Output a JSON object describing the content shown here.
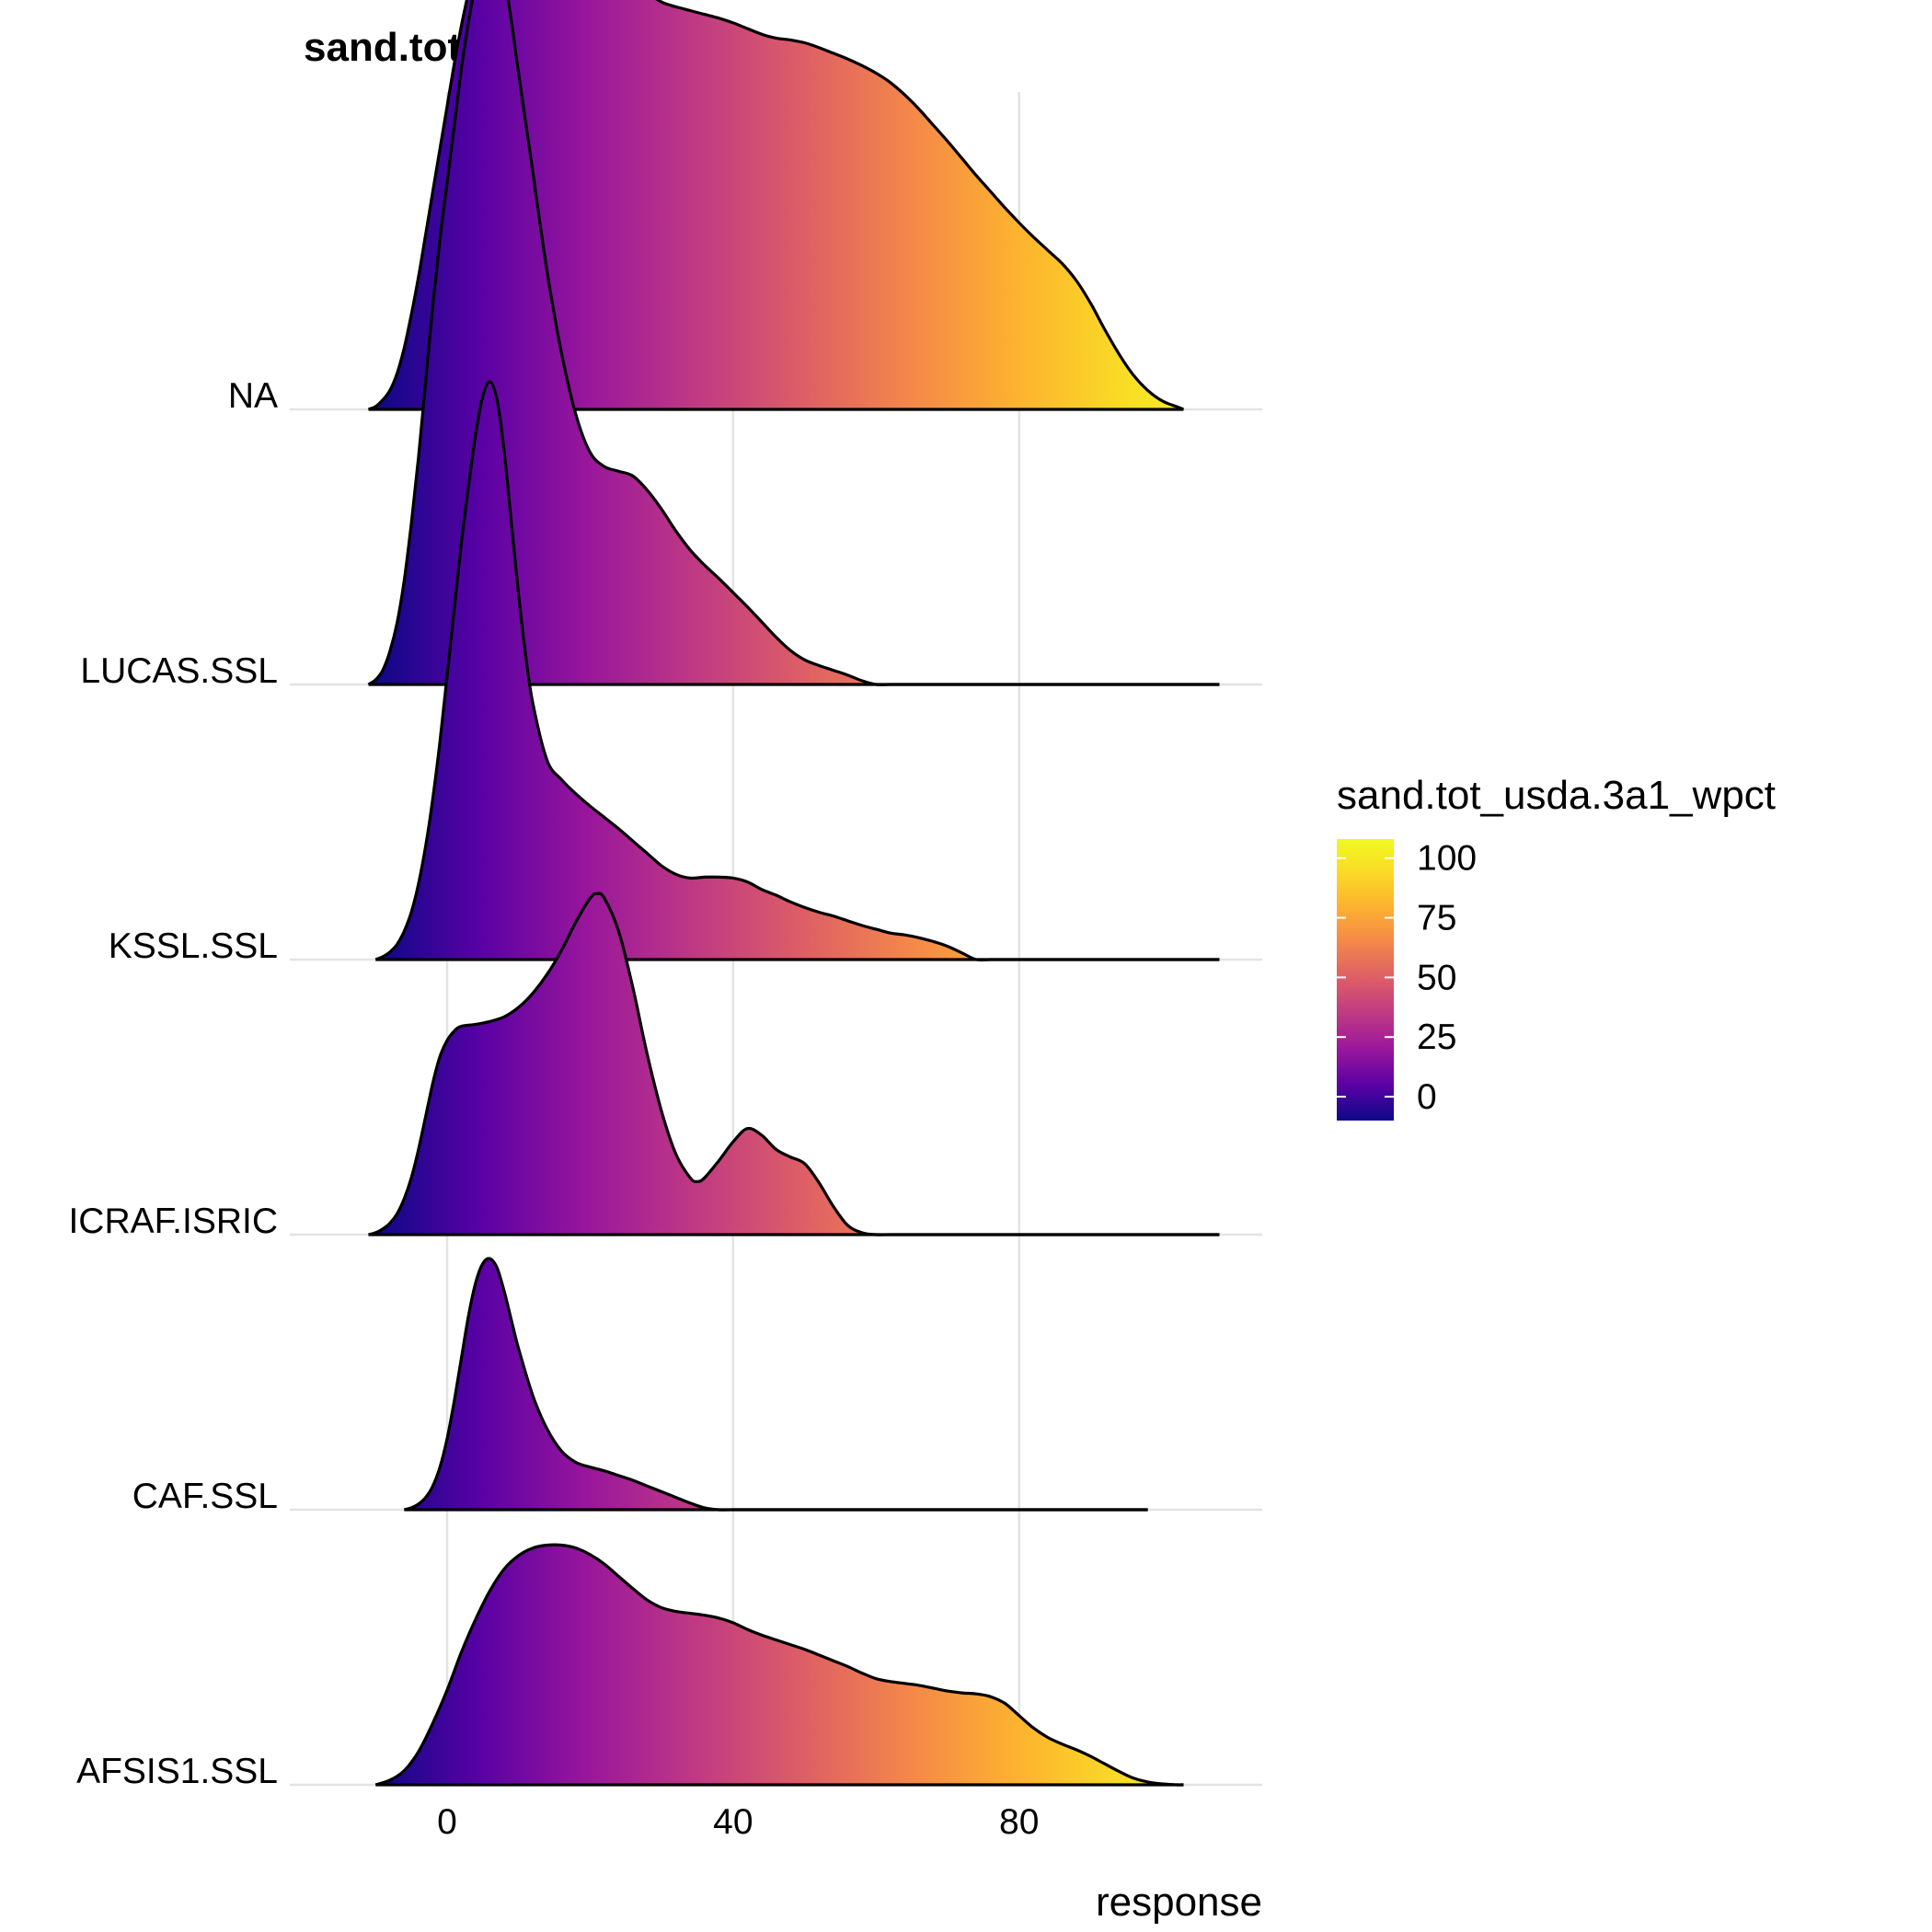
{
  "chart_data": {
    "type": "ridgeline",
    "title": "sand.tot_usda.3a1_wpct",
    "xlabel": "response",
    "ylabel": "",
    "xlim": [
      -22,
      114
    ],
    "x_ticks": [
      0,
      40,
      80
    ],
    "grid": true,
    "fill_gradient": {
      "name": "sand.tot_usda.3a1_wpct",
      "value_range": [
        -10,
        108
      ],
      "ticks": [
        0,
        25,
        50,
        75,
        100
      ],
      "stops": [
        {
          "value": -10,
          "color": "#0d0887"
        },
        {
          "value": 5,
          "color": "#5b01a5"
        },
        {
          "value": 20,
          "color": "#9a179b"
        },
        {
          "value": 35,
          "color": "#c03a83"
        },
        {
          "value": 50,
          "color": "#de5f65"
        },
        {
          "value": 65,
          "color": "#f48849"
        },
        {
          "value": 80,
          "color": "#fdb32f"
        },
        {
          "value": 95,
          "color": "#f9dd25"
        },
        {
          "value": 108,
          "color": "#f0f921"
        }
      ]
    },
    "categories": [
      "AFSIS1.SSL",
      "CAF.SSL",
      "ICRAF.ISRIC",
      "KSSL.SSL",
      "LUCAS.SSL",
      "NA"
    ],
    "series": [
      {
        "name": "AFSIS1.SSL",
        "x": [
          -10,
          -8,
          -6,
          -4,
          -2,
          0,
          2,
          4,
          6,
          8,
          10,
          12,
          14,
          16,
          18,
          20,
          22,
          24,
          26,
          28,
          30,
          32,
          34,
          36,
          38,
          40,
          42,
          44,
          46,
          48,
          50,
          52,
          54,
          56,
          58,
          60,
          62,
          64,
          66,
          68,
          70,
          72,
          74,
          76,
          78,
          80,
          82,
          84,
          86,
          88,
          90,
          92,
          94,
          96,
          98,
          100,
          102,
          103
        ],
        "y": [
          0.0,
          0.05,
          0.15,
          0.35,
          0.65,
          1.0,
          1.4,
          1.75,
          2.05,
          2.28,
          2.42,
          2.5,
          2.53,
          2.53,
          2.5,
          2.43,
          2.33,
          2.2,
          2.07,
          1.95,
          1.87,
          1.83,
          1.81,
          1.79,
          1.76,
          1.71,
          1.64,
          1.58,
          1.53,
          1.48,
          1.43,
          1.37,
          1.31,
          1.25,
          1.18,
          1.12,
          1.09,
          1.07,
          1.05,
          1.02,
          0.99,
          0.97,
          0.96,
          0.93,
          0.86,
          0.73,
          0.6,
          0.5,
          0.43,
          0.37,
          0.3,
          0.22,
          0.14,
          0.07,
          0.03,
          0.01,
          0.0,
          0.0
        ]
      },
      {
        "name": "CAF.SSL",
        "x": [
          -6,
          -5,
          -4,
          -3,
          -2,
          -1,
          0,
          1,
          2,
          3,
          4,
          5,
          6,
          7,
          8,
          9,
          10,
          12,
          14,
          16,
          18,
          20,
          22,
          24,
          26,
          28,
          30,
          32,
          34,
          36,
          38,
          40,
          42,
          44,
          46,
          48,
          50,
          52,
          54,
          56,
          58,
          60,
          62,
          64,
          66,
          68,
          70,
          72,
          74,
          76,
          78,
          80,
          82,
          84,
          86,
          88,
          90,
          92,
          94,
          96,
          98
        ],
        "y": [
          0.0,
          0.02,
          0.06,
          0.13,
          0.25,
          0.45,
          0.75,
          1.15,
          1.6,
          2.05,
          2.4,
          2.6,
          2.65,
          2.55,
          2.3,
          2.0,
          1.7,
          1.2,
          0.85,
          0.62,
          0.5,
          0.45,
          0.41,
          0.36,
          0.31,
          0.25,
          0.19,
          0.13,
          0.07,
          0.02,
          0.0,
          0.0,
          0.0,
          0.0,
          0.0,
          0.0,
          0.0,
          0.0,
          0.0,
          0.0,
          0.0,
          0.0,
          0.0,
          0.0,
          0.0,
          0.0,
          0.0,
          0.0,
          0.0,
          0.0,
          0.0,
          0.0,
          0.0,
          0.0,
          0.0,
          0.0,
          0.0,
          0.0,
          0.0,
          0.0,
          0.0
        ]
      },
      {
        "name": "ICRAF.ISRIC",
        "x": [
          -11,
          -10,
          -9,
          -8,
          -7,
          -6,
          -5,
          -4,
          -3,
          -2,
          -1,
          0,
          1,
          2,
          4,
          6,
          8,
          10,
          12,
          14,
          16,
          18,
          20,
          21,
          22,
          24,
          26,
          28,
          30,
          32,
          34,
          35,
          36,
          38,
          40,
          42,
          44,
          46,
          48,
          50,
          52,
          54,
          56,
          58,
          60,
          62,
          64,
          66,
          68,
          70,
          72,
          74,
          76,
          78,
          80,
          82,
          84,
          86,
          88,
          90,
          92,
          94,
          96,
          98,
          100,
          102,
          104,
          106,
          108
        ],
        "y": [
          0.0,
          0.02,
          0.06,
          0.12,
          0.22,
          0.38,
          0.6,
          0.9,
          1.25,
          1.6,
          1.88,
          2.05,
          2.15,
          2.2,
          2.22,
          2.25,
          2.3,
          2.4,
          2.55,
          2.75,
          3.0,
          3.3,
          3.55,
          3.6,
          3.55,
          3.2,
          2.6,
          1.9,
          1.3,
          0.85,
          0.6,
          0.56,
          0.6,
          0.78,
          0.98,
          1.12,
          1.05,
          0.9,
          0.82,
          0.75,
          0.55,
          0.3,
          0.1,
          0.02,
          0.0,
          0.0,
          0.0,
          0.0,
          0.0,
          0.0,
          0.0,
          0.0,
          0.0,
          0.0,
          0.0,
          0.0,
          0.0,
          0.0,
          0.0,
          0.0,
          0.0,
          0.0,
          0.0,
          0.0,
          0.0,
          0.0,
          0.0,
          0.0,
          0.0
        ]
      },
      {
        "name": "KSSL.SSL",
        "x": [
          -10,
          -9,
          -8,
          -7,
          -6,
          -5,
          -4,
          -3,
          -2,
          -1,
          0,
          1,
          2,
          3,
          4,
          5,
          6,
          7,
          8,
          9,
          10,
          11,
          12,
          14,
          16,
          18,
          20,
          22,
          24,
          26,
          28,
          30,
          32,
          34,
          36,
          38,
          40,
          42,
          44,
          46,
          48,
          50,
          52,
          54,
          56,
          58,
          60,
          62,
          64,
          66,
          68,
          70,
          72,
          74,
          76,
          78,
          80,
          82,
          84,
          86,
          88,
          90,
          92,
          94,
          96,
          98,
          100,
          102,
          104,
          106,
          108
        ],
        "y": [
          0.0,
          0.03,
          0.08,
          0.16,
          0.3,
          0.5,
          0.8,
          1.2,
          1.7,
          2.3,
          3.0,
          3.7,
          4.4,
          5.0,
          5.55,
          5.95,
          6.1,
          5.9,
          5.35,
          4.6,
          3.85,
          3.2,
          2.7,
          2.1,
          1.9,
          1.75,
          1.62,
          1.5,
          1.38,
          1.25,
          1.12,
          0.99,
          0.9,
          0.86,
          0.87,
          0.87,
          0.86,
          0.82,
          0.74,
          0.68,
          0.61,
          0.55,
          0.5,
          0.46,
          0.41,
          0.36,
          0.32,
          0.28,
          0.26,
          0.23,
          0.19,
          0.14,
          0.07,
          0.0,
          0.0,
          0.0,
          0.0,
          0.0,
          0.0,
          0.0,
          0.0,
          0.0,
          0.0,
          0.0,
          0.0,
          0.0,
          0.0,
          0.0,
          0.0,
          0.0,
          0.0
        ]
      },
      {
        "name": "LUCAS.SSL",
        "x": [
          -11,
          -10,
          -9,
          -8,
          -7,
          -6,
          -5,
          -4,
          -3,
          -2,
          -1,
          0,
          1,
          2,
          3,
          4,
          5,
          6,
          7,
          8,
          9,
          10,
          12,
          14,
          16,
          18,
          20,
          22,
          24,
          26,
          28,
          30,
          32,
          34,
          36,
          38,
          40,
          42,
          44,
          46,
          48,
          50,
          52,
          54,
          56,
          58,
          60,
          62,
          64,
          66,
          68,
          70,
          72,
          74,
          76,
          78,
          80,
          82,
          84,
          86,
          88,
          90,
          92,
          94,
          96,
          98,
          100,
          102,
          104,
          106,
          108
        ],
        "y": [
          0.0,
          0.05,
          0.15,
          0.35,
          0.65,
          1.1,
          1.7,
          2.4,
          3.2,
          4.0,
          4.7,
          5.3,
          5.9,
          6.5,
          7.0,
          7.4,
          7.65,
          7.75,
          7.7,
          7.45,
          7.0,
          6.45,
          5.4,
          4.35,
          3.5,
          2.85,
          2.45,
          2.3,
          2.25,
          2.2,
          2.05,
          1.85,
          1.62,
          1.42,
          1.26,
          1.12,
          0.97,
          0.82,
          0.66,
          0.5,
          0.36,
          0.26,
          0.2,
          0.15,
          0.1,
          0.04,
          0.0,
          0.0,
          0.0,
          0.0,
          0.0,
          0.0,
          0.0,
          0.0,
          0.0,
          0.0,
          0.0,
          0.0,
          0.0,
          0.0,
          0.0,
          0.0,
          0.0,
          0.0,
          0.0,
          0.0,
          0.0,
          0.0,
          0.0,
          0.0,
          0.0
        ]
      },
      {
        "name": "NA",
        "x": [
          -11,
          -10,
          -9,
          -8,
          -7,
          -6,
          -5,
          -4,
          -3,
          -2,
          -1,
          0,
          1,
          2,
          3,
          4,
          5,
          6,
          7,
          8,
          9,
          10,
          11,
          12,
          13,
          14,
          16,
          18,
          20,
          22,
          24,
          26,
          28,
          30,
          32,
          34,
          36,
          38,
          40,
          42,
          44,
          46,
          48,
          50,
          52,
          54,
          56,
          58,
          60,
          62,
          64,
          66,
          68,
          70,
          72,
          74,
          76,
          78,
          80,
          82,
          84,
          86,
          88,
          90,
          92,
          94,
          96,
          98,
          100,
          102,
          103
        ],
        "y": [
          0.0,
          0.03,
          0.1,
          0.2,
          0.38,
          0.65,
          1.0,
          1.4,
          1.85,
          2.3,
          2.75,
          3.2,
          3.65,
          4.05,
          4.4,
          4.65,
          4.83,
          4.92,
          4.97,
          5.0,
          5.01,
          5.02,
          5.02,
          5.01,
          5.0,
          4.98,
          4.92,
          4.85,
          4.76,
          4.68,
          4.6,
          4.5,
          4.4,
          4.3,
          4.25,
          4.21,
          4.17,
          4.13,
          4.08,
          4.02,
          3.96,
          3.92,
          3.9,
          3.87,
          3.82,
          3.76,
          3.7,
          3.63,
          3.55,
          3.45,
          3.32,
          3.17,
          3.0,
          2.83,
          2.65,
          2.47,
          2.3,
          2.13,
          1.97,
          1.82,
          1.68,
          1.54,
          1.36,
          1.12,
          0.84,
          0.58,
          0.36,
          0.2,
          0.09,
          0.03,
          0.0
        ]
      }
    ]
  }
}
